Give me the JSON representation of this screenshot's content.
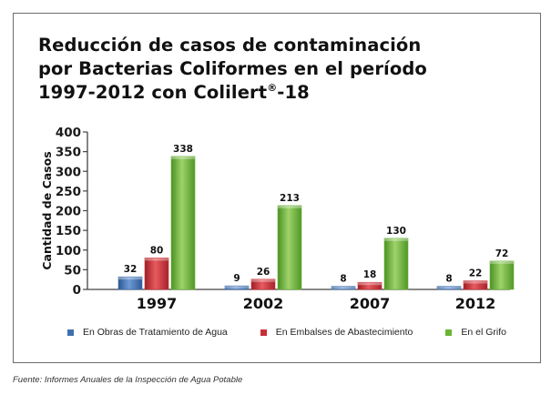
{
  "title": {
    "line1": "Reducción de casos de contaminación",
    "line2": "por Bacterias Coliformes en el período",
    "line3": "1997-2012 con Colilert",
    "line3_sup": "®",
    "line3_end": "-18"
  },
  "source": "Fuente: Informes Anuales de la Inspección de Agua Potable",
  "colors": {
    "blue": "#3f6fb0",
    "red": "#c92f36",
    "green": "#6ab534"
  },
  "chart_data": {
    "type": "bar",
    "ylabel": "Cantidad de Casos",
    "xlabel": "",
    "ylim": [
      0,
      400
    ],
    "yticks": [
      0,
      50,
      100,
      150,
      200,
      250,
      300,
      350,
      400
    ],
    "categories": [
      "1997",
      "2002",
      "2007",
      "2012"
    ],
    "series": [
      {
        "name": "En Obras de Tratamiento de Agua",
        "color": "#3f6fb0",
        "values": [
          32,
          9,
          8,
          8
        ]
      },
      {
        "name": "En Embalses de Abastecimiento",
        "color": "#c92f36",
        "values": [
          80,
          26,
          18,
          22
        ]
      },
      {
        "name": "En el Grifo",
        "color": "#6ab534",
        "values": [
          338,
          213,
          130,
          72
        ]
      }
    ],
    "grid": false,
    "legend": "bottom"
  }
}
